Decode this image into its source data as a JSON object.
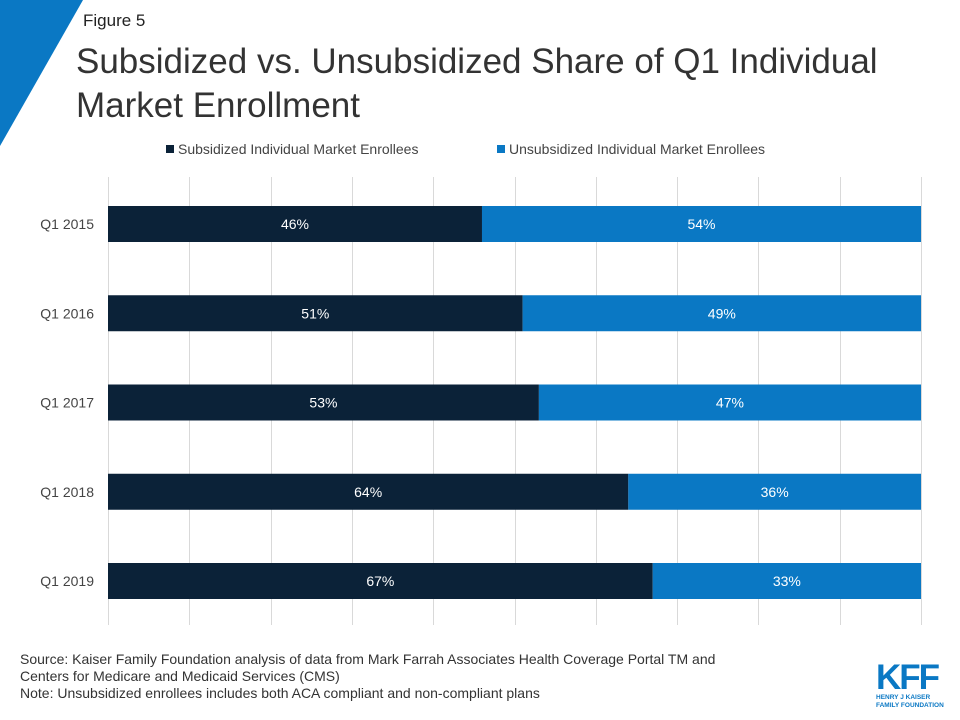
{
  "figure_label": "Figure 5",
  "title": "Subsidized vs. Unsubsidized Share of Q1 Individual Market Enrollment",
  "colors": {
    "corner_accent": "#0a78c4",
    "subsidized": "#0b2238",
    "unsubsidized": "#0a78c4",
    "gridline": "#d9d9d9"
  },
  "chart_data": {
    "type": "bar",
    "orientation": "horizontal",
    "stacked": true,
    "percent": true,
    "categories": [
      "Q1 2015",
      "Q1 2016",
      "Q1 2017",
      "Q1 2018",
      "Q1 2019"
    ],
    "series": [
      {
        "name": "Subsidized Individual Market Enrollees",
        "values": [
          46,
          51,
          53,
          64,
          67
        ],
        "labels": [
          "46%",
          "51%",
          "53%",
          "64%",
          "67%"
        ]
      },
      {
        "name": "Unsubsidized Individual Market Enrollees",
        "values": [
          54,
          49,
          47,
          36,
          33
        ],
        "labels": [
          "54%",
          "49%",
          "47%",
          "36%",
          "33%"
        ]
      }
    ],
    "xlim": [
      0,
      100
    ],
    "grid": true,
    "legend_position": "top"
  },
  "source": {
    "lines": [
      "Source: Kaiser Family Foundation analysis of data from Mark Farrah Associates Health Coverage Portal TM and",
      "Centers for Medicare and Medicaid Services (CMS)",
      "Note: Unsubsidized enrollees includes both ACA compliant and non-compliant plans"
    ]
  },
  "logo": {
    "mark": "KFF",
    "line1": "HENRY J KAISER",
    "line2": "FAMILY FOUNDATION"
  }
}
